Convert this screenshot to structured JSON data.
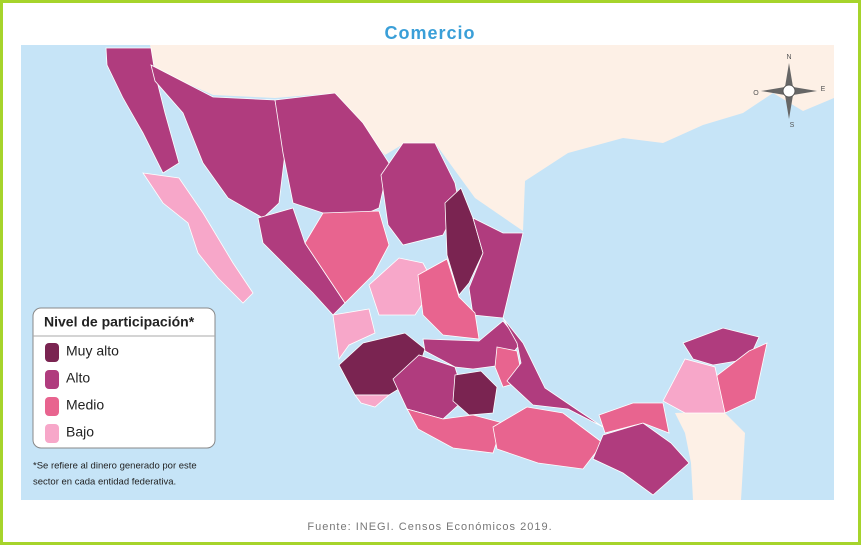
{
  "header": {
    "title": "Comercio"
  },
  "legend": {
    "title": "Nivel de participación*",
    "items": [
      {
        "label": "Muy alto",
        "color": "#7a2451"
      },
      {
        "label": "Alto",
        "color": "#b03c7e"
      },
      {
        "label": "Medio",
        "color": "#e8648f"
      },
      {
        "label": "Bajo",
        "color": "#f7a7c9"
      }
    ]
  },
  "footnote": [
    "*Se refiere al dinero generado por este",
    "sector en cada entidad federativa."
  ],
  "compass": {
    "north": "N",
    "east": "E",
    "south": "S",
    "west": "O"
  },
  "source": "Fuente: INEGI. Censos Económicos 2019."
}
